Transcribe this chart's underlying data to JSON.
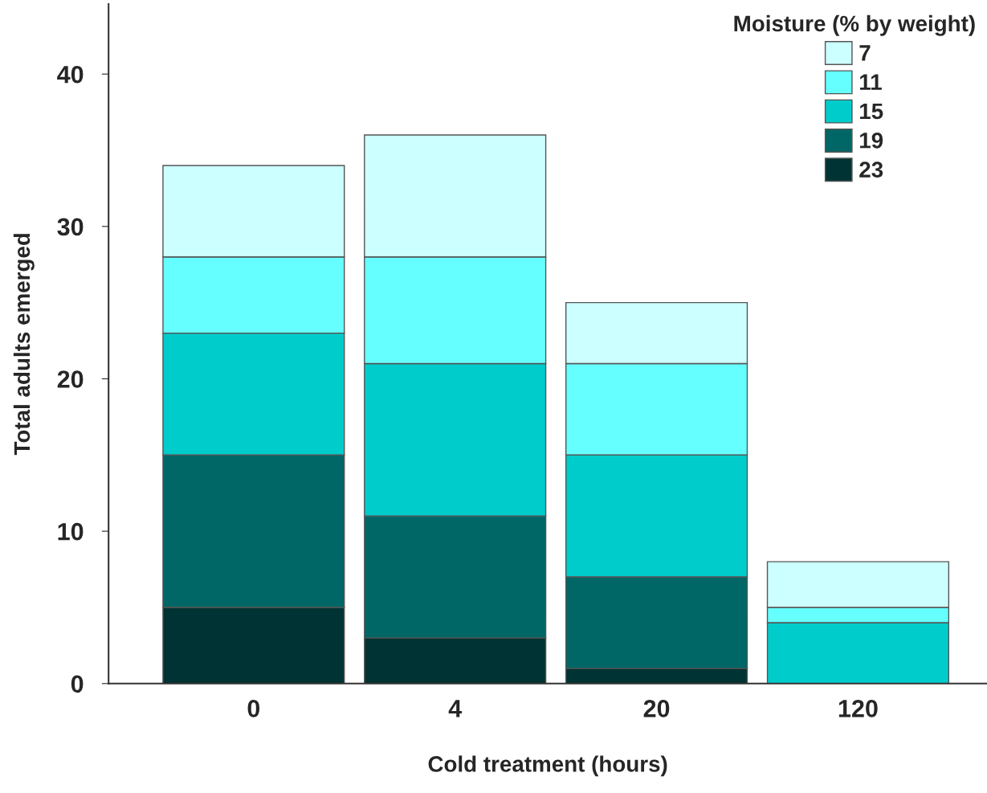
{
  "chart_data": {
    "type": "bar",
    "stacked": true,
    "xlabel": "Cold treatment (hours)",
    "ylabel": "Total adults emerged",
    "legend_title": "Moisture (% by weight)",
    "legend": "top right",
    "grid": false,
    "categories": [
      "0",
      "4",
      "20",
      "120"
    ],
    "ylim": [
      0,
      44.6
    ],
    "yticks": [
      0,
      10,
      20,
      30,
      40
    ],
    "series": [
      {
        "name": "23",
        "color": "#003333",
        "values": [
          5,
          3,
          1,
          0
        ]
      },
      {
        "name": "19",
        "color": "#006666",
        "values": [
          10,
          8,
          6,
          0
        ]
      },
      {
        "name": "15",
        "color": "#00cccc",
        "values": [
          8,
          10,
          8,
          4
        ]
      },
      {
        "name": "11",
        "color": "#66ffff",
        "values": [
          5,
          7,
          6,
          1
        ]
      },
      {
        "name": "7",
        "color": "#ccffff",
        "values": [
          6,
          8,
          4,
          3
        ]
      }
    ]
  }
}
